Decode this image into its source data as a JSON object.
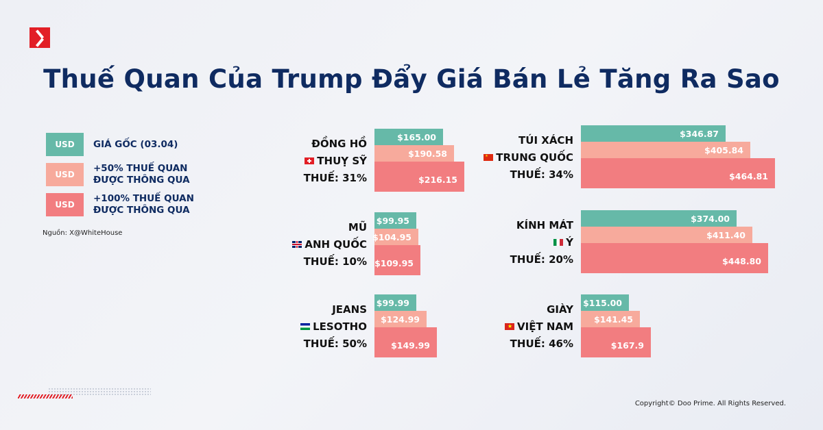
{
  "title": "Thuế Quan Của Trump Đẩy Giá Bán Lẻ Tăng Ra Sao",
  "legend": [
    {
      "tag": "USD",
      "label": "GIÁ GỐC (03.04)",
      "color": "#66b9a8"
    },
    {
      "tag": "USD",
      "label": "+50% THUẾ QUAN ĐƯỢC THÔNG QUA",
      "color": "#f7aa9c"
    },
    {
      "tag": "USD",
      "label": "+100% THUẾ QUAN ĐƯỢC THÔNG QUA",
      "color": "#f27d80"
    }
  ],
  "source": "Nguồn: X@WhiteHouse",
  "copyright": "Copyright© Doo Prime. All Rights Reserved.",
  "chart_data": {
    "type": "bar",
    "series_labels": [
      "GIÁ GỐC (03.04)",
      "+50% THUẾ QUAN ĐƯỢC THÔNG QUA",
      "+100% THUẾ QUAN ĐƯỢC THÔNG QUA"
    ],
    "items": [
      {
        "product": "ĐỒNG HỒ",
        "country": "THUỴ SỸ",
        "flag": "switzerland-flag",
        "tax": "THUẾ: 31%",
        "values": [
          165.0,
          190.58,
          216.15
        ],
        "labels": [
          "$165.00",
          "$190.58",
          "$216.15"
        ]
      },
      {
        "product": "TÚI XÁCH",
        "country": "TRUNG QUỐC",
        "flag": "china-flag",
        "tax": "THUẾ: 34%",
        "values": [
          346.87,
          405.84,
          464.81
        ],
        "labels": [
          "$346.87",
          "$405.84",
          "$464.81"
        ]
      },
      {
        "product": "MŨ",
        "country": "ANH QUỐC",
        "flag": "uk-flag",
        "tax": "THUẾ: 10%",
        "values": [
          99.95,
          104.95,
          109.95
        ],
        "labels": [
          "$99.95",
          "$104.95",
          "$109.95"
        ]
      },
      {
        "product": "KÍNH MÁT",
        "country": "Ý",
        "flag": "italy-flag",
        "tax": "THUẾ: 20%",
        "values": [
          374.0,
          411.4,
          448.8
        ],
        "labels": [
          "$374.00",
          "$411.40",
          "$448.80"
        ]
      },
      {
        "product": "JEANS",
        "country": "LESOTHO",
        "flag": "lesotho-flag",
        "tax": "THUẾ: 50%",
        "values": [
          99.99,
          124.99,
          149.99
        ],
        "labels": [
          "$99.99",
          "$124.99",
          "$149.99"
        ]
      },
      {
        "product": "GIÀY",
        "country": "VIỆT NAM",
        "flag": "vietnam-flag",
        "tax": "THUẾ: 46%",
        "values": [
          115.0,
          141.45,
          167.9
        ],
        "labels": [
          "$115.00",
          "$141.45",
          "$167.9"
        ]
      }
    ]
  }
}
